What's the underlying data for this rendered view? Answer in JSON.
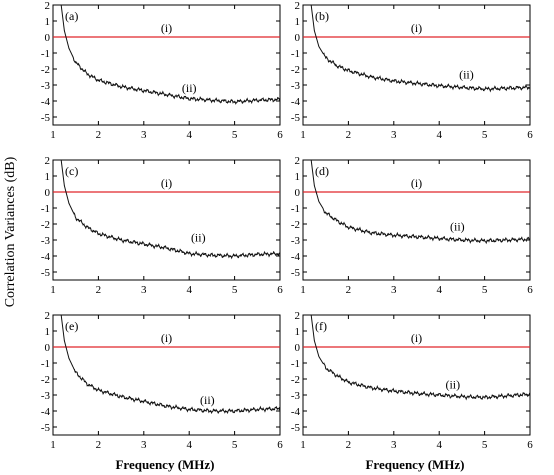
{
  "ylabel": "Correlation Variances (dB)",
  "xlabel": "Frequency (MHz)",
  "colors": {
    "reference": "#e0262b",
    "measured": "#111111",
    "axis": "#000000"
  },
  "chart_data": [
    {
      "type": "line",
      "panel": "(a)",
      "x_ticks": [
        1,
        2,
        3,
        4,
        5,
        6
      ],
      "y_ticks": [
        -5,
        -4,
        -3,
        -2,
        -1,
        0,
        1,
        2
      ],
      "xlim": [
        1,
        6
      ],
      "ylim": [
        -5.5,
        2
      ],
      "grid": false,
      "series": [
        {
          "name": "(i)",
          "x": [
            1,
            6
          ],
          "values": [
            0,
            0
          ]
        },
        {
          "name": "(ii)",
          "x": [
            1.18,
            1.25,
            1.35,
            1.5,
            1.75,
            2,
            2.5,
            3,
            3.5,
            4,
            4.5,
            5,
            5.5,
            6
          ],
          "values": [
            2.0,
            0.4,
            -0.7,
            -1.6,
            -2.3,
            -2.7,
            -3.1,
            -3.35,
            -3.6,
            -3.85,
            -3.95,
            -4.05,
            -3.95,
            -3.9
          ]
        }
      ],
      "annotations": [
        {
          "text": "(i)",
          "x": 3.5,
          "y": 0.3
        },
        {
          "text": "(ii)",
          "x": 4.0,
          "y": -3.45
        }
      ]
    },
    {
      "type": "line",
      "panel": "(b)",
      "x_ticks": [
        1,
        2,
        3,
        4,
        5,
        6
      ],
      "y_ticks": [
        -5,
        -4,
        -3,
        -2,
        -1,
        0,
        1,
        2
      ],
      "xlim": [
        1,
        6
      ],
      "ylim": [
        -5.5,
        2
      ],
      "grid": false,
      "series": [
        {
          "name": "(i)",
          "x": [
            1,
            6
          ],
          "values": [
            0,
            0
          ]
        },
        {
          "name": "(ii)",
          "x": [
            1.18,
            1.25,
            1.35,
            1.5,
            1.75,
            2,
            2.5,
            3,
            3.5,
            4,
            4.5,
            5,
            5.5,
            6
          ],
          "values": [
            2.0,
            0.4,
            -0.6,
            -1.3,
            -1.8,
            -2.1,
            -2.5,
            -2.75,
            -2.9,
            -3.05,
            -3.15,
            -3.25,
            -3.2,
            -3.15
          ]
        }
      ],
      "annotations": [
        {
          "text": "(i)",
          "x": 3.5,
          "y": 0.3
        },
        {
          "text": "(ii)",
          "x": 4.6,
          "y": -2.6
        }
      ]
    },
    {
      "type": "line",
      "panel": "(c)",
      "x_ticks": [
        1,
        2,
        3,
        4,
        5,
        6
      ],
      "y_ticks": [
        -5,
        -4,
        -3,
        -2,
        -1,
        0,
        1,
        2
      ],
      "xlim": [
        1,
        6
      ],
      "ylim": [
        -5.5,
        2
      ],
      "grid": false,
      "series": [
        {
          "name": "(i)",
          "x": [
            1,
            6
          ],
          "values": [
            0,
            0
          ]
        },
        {
          "name": "(ii)",
          "x": [
            1.18,
            1.25,
            1.35,
            1.5,
            1.75,
            2,
            2.5,
            3,
            3.5,
            4,
            4.5,
            5,
            5.5,
            6
          ],
          "values": [
            2.0,
            0.4,
            -0.7,
            -1.6,
            -2.2,
            -2.6,
            -3.0,
            -3.25,
            -3.5,
            -3.85,
            -3.95,
            -4.0,
            -3.9,
            -3.85
          ]
        }
      ],
      "annotations": [
        {
          "text": "(i)",
          "x": 3.5,
          "y": 0.3
        },
        {
          "text": "(ii)",
          "x": 4.2,
          "y": -3.1
        }
      ]
    },
    {
      "type": "line",
      "panel": "(d)",
      "x_ticks": [
        1,
        2,
        3,
        4,
        5,
        6
      ],
      "y_ticks": [
        -5,
        -4,
        -3,
        -2,
        -1,
        0,
        1,
        2
      ],
      "xlim": [
        1,
        6
      ],
      "ylim": [
        -5.5,
        2
      ],
      "grid": false,
      "series": [
        {
          "name": "(i)",
          "x": [
            1,
            6
          ],
          "values": [
            0,
            0
          ]
        },
        {
          "name": "(ii)",
          "x": [
            1.18,
            1.25,
            1.35,
            1.5,
            1.75,
            2,
            2.5,
            3,
            3.5,
            4,
            4.5,
            5,
            5.5,
            6
          ],
          "values": [
            2.0,
            0.4,
            -0.6,
            -1.3,
            -1.8,
            -2.2,
            -2.55,
            -2.7,
            -2.8,
            -2.9,
            -3.0,
            -3.05,
            -3.0,
            -2.95
          ]
        }
      ],
      "annotations": [
        {
          "text": "(i)",
          "x": 3.5,
          "y": 0.3
        },
        {
          "text": "(ii)",
          "x": 4.4,
          "y": -2.4
        }
      ]
    },
    {
      "type": "line",
      "panel": "(e)",
      "x_ticks": [
        1,
        2,
        3,
        4,
        5,
        6
      ],
      "y_ticks": [
        -5,
        -4,
        -3,
        -2,
        -1,
        0,
        1,
        2
      ],
      "xlim": [
        1,
        6
      ],
      "ylim": [
        -5.5,
        2
      ],
      "grid": false,
      "series": [
        {
          "name": "(i)",
          "x": [
            1,
            6
          ],
          "values": [
            0,
            0
          ]
        },
        {
          "name": "(ii)",
          "x": [
            1.18,
            1.25,
            1.35,
            1.5,
            1.75,
            2,
            2.5,
            3,
            3.5,
            4,
            4.5,
            5,
            5.5,
            6
          ],
          "values": [
            2.0,
            0.4,
            -0.7,
            -1.6,
            -2.3,
            -2.7,
            -3.1,
            -3.4,
            -3.7,
            -3.9,
            -4.0,
            -4.0,
            -3.9,
            -3.85
          ]
        }
      ],
      "annotations": [
        {
          "text": "(i)",
          "x": 3.5,
          "y": 0.3
        },
        {
          "text": "(ii)",
          "x": 4.4,
          "y": -3.55
        }
      ]
    },
    {
      "type": "line",
      "panel": "(f)",
      "x_ticks": [
        1,
        2,
        3,
        4,
        5,
        6
      ],
      "y_ticks": [
        -5,
        -4,
        -3,
        -2,
        -1,
        0,
        1,
        2
      ],
      "xlim": [
        1,
        6
      ],
      "ylim": [
        -5.5,
        2
      ],
      "grid": false,
      "series": [
        {
          "name": "(i)",
          "x": [
            1,
            6
          ],
          "values": [
            0,
            0
          ]
        },
        {
          "name": "(ii)",
          "x": [
            1.18,
            1.25,
            1.35,
            1.5,
            1.75,
            2,
            2.5,
            3,
            3.5,
            4,
            4.5,
            5,
            5.5,
            6
          ],
          "values": [
            2.0,
            0.4,
            -0.6,
            -1.3,
            -1.8,
            -2.2,
            -2.55,
            -2.75,
            -2.9,
            -3.0,
            -3.1,
            -3.15,
            -3.05,
            -2.95
          ]
        }
      ],
      "annotations": [
        {
          "text": "(i)",
          "x": 3.5,
          "y": 0.3
        },
        {
          "text": "(ii)",
          "x": 4.3,
          "y": -2.6
        }
      ]
    }
  ]
}
